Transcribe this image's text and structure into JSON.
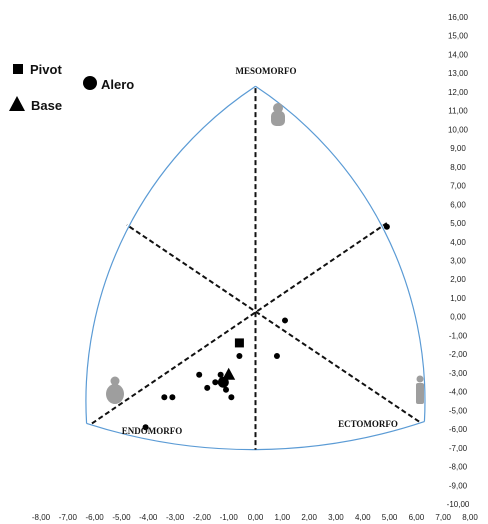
{
  "chart_data": {
    "type": "scatter",
    "title": "",
    "xlabel": "",
    "ylabel": "",
    "xlim": [
      -8,
      8
    ],
    "ylim": [
      -10,
      16
    ],
    "x_ticks": [
      "-8,00",
      "-7,00",
      "-6,00",
      "-5,00",
      "-4,00",
      "-3,00",
      "-2,00",
      "-1,00",
      "0,00",
      "1,00",
      "2,00",
      "3,00",
      "4,00",
      "5,00",
      "6,00",
      "7,00",
      "8,00"
    ],
    "y_ticks": [
      "-10,00",
      "-9,00",
      "-8,00",
      "-7,00",
      "-6,00",
      "-5,00",
      "-4,00",
      "-3,00",
      "-2,00",
      "-1,00",
      "0,00",
      "1,00",
      "2,00",
      "3,00",
      "4,00",
      "5,00",
      "6,00",
      "7,00",
      "8,00",
      "9,00",
      "10,00",
      "11,00",
      "12,00",
      "13,00",
      "14,00",
      "15,00",
      "16,00"
    ],
    "grid": false,
    "legend_position": "top-left",
    "somatochart": {
      "apex_top": [
        0,
        12.3
      ],
      "apex_left": [
        -6.3,
        -5.7
      ],
      "apex_right": [
        6.3,
        -5.6
      ],
      "line_ends": {
        "meso_axis": [
          [
            0,
            12.2
          ],
          [
            0,
            -7.1
          ]
        ],
        "endo_to_ecto_top": [
          [
            -6.1,
            -5.7
          ],
          [
            4.9,
            5.0
          ]
        ],
        "ecto_to_endo_top": [
          [
            6.1,
            -5.6
          ],
          [
            -4.8,
            4.9
          ]
        ]
      },
      "labels": {
        "meso": "MESOMORFO",
        "endo": "ENDOMORFO",
        "ecto": "ECTOMORFO"
      },
      "colors": {
        "outline": "#5b9bd5",
        "axes": "#111111",
        "figures": "#9e9e9e"
      }
    },
    "series": [
      {
        "name": "Pivot",
        "marker": "square",
        "points": [
          [
            -0.6,
            -1.4
          ]
        ]
      },
      {
        "name": "Alero",
        "marker": "circle",
        "points": [
          [
            -1.2,
            -3.5
          ]
        ]
      },
      {
        "name": "Base",
        "marker": "triangle",
        "points": [
          [
            -1.0,
            -3.1
          ]
        ]
      },
      {
        "name": "",
        "marker": "dot",
        "points": [
          [
            4.9,
            4.8
          ],
          [
            1.1,
            -0.2
          ],
          [
            0.8,
            -2.1
          ],
          [
            -0.6,
            -2.1
          ],
          [
            -1.3,
            -3.1
          ],
          [
            -2.1,
            -3.1
          ],
          [
            -1.8,
            -3.8
          ],
          [
            -1.5,
            -3.5
          ],
          [
            -1.1,
            -3.9
          ],
          [
            -0.9,
            -4.3
          ],
          [
            -3.1,
            -4.3
          ],
          [
            -3.4,
            -4.3
          ],
          [
            -4.1,
            -5.9
          ]
        ]
      }
    ]
  }
}
